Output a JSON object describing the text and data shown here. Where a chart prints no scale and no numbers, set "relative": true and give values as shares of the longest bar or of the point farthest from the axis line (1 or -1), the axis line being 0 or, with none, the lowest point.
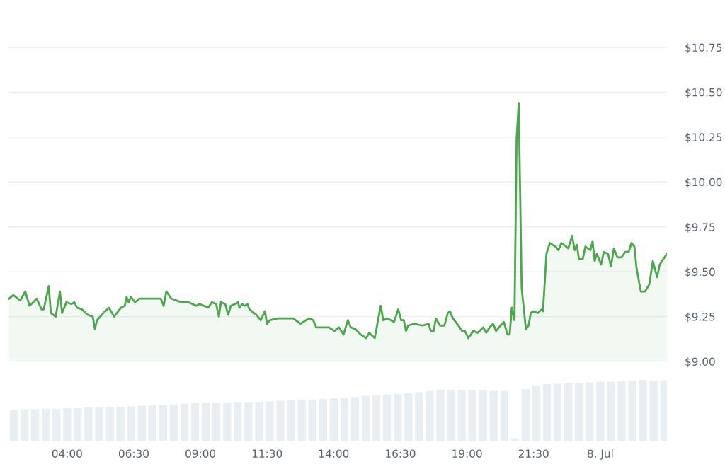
{
  "chart_data": [
    {
      "type": "area",
      "tick_labels": "y",
      "grid": "y",
      "xlim": [
        1.8,
        26.5
      ],
      "ylim": [
        9.0,
        10.75
      ],
      "yticks": [
        {
          "value": 9.0,
          "label": "$9.00"
        },
        {
          "value": 9.25,
          "label": "$9.25"
        },
        {
          "value": 9.5,
          "label": "$9.50"
        },
        {
          "value": 9.75,
          "label": "$9.75"
        },
        {
          "value": 10.0,
          "label": "$10.00"
        },
        {
          "value": 10.25,
          "label": "$10.25"
        },
        {
          "value": 10.5,
          "label": "$10.50"
        },
        {
          "value": 10.75,
          "label": "$10.75"
        }
      ],
      "series": [
        {
          "color": "#4ca64c",
          "x": [
            1.82,
            1.98,
            2.24,
            2.43,
            2.59,
            2.86,
            3.04,
            3.12,
            3.31,
            3.39,
            3.57,
            3.73,
            3.81,
            3.97,
            4.16,
            4.27,
            4.37,
            4.56,
            4.77,
            4.96,
            5.04,
            5.12,
            5.36,
            5.57,
            5.76,
            6.02,
            6.16,
            6.23,
            6.31,
            6.39,
            6.55,
            6.71,
            7.03,
            7.51,
            7.62,
            7.72,
            7.91,
            8.28,
            8.55,
            8.84,
            8.97,
            9.29,
            9.43,
            9.59,
            9.69,
            9.77,
            9.93,
            10.04,
            10.14,
            10.3,
            10.41,
            10.46,
            10.57,
            10.65,
            10.76,
            10.84,
            11.1,
            11.26,
            11.42,
            11.5,
            11.61,
            11.9,
            12.35,
            12.48,
            12.75,
            13.07,
            13.23,
            13.34,
            13.6,
            13.81,
            14.03,
            14.19,
            14.37,
            14.53,
            14.64,
            14.82,
            15.01,
            15.22,
            15.33,
            15.54,
            15.76,
            15.86,
            16.02,
            16.26,
            16.42,
            16.53,
            16.63,
            16.71,
            16.79,
            17.01,
            17.33,
            17.56,
            17.64,
            17.75,
            17.83,
            17.99,
            18.15,
            18.28,
            18.36,
            18.47,
            18.68,
            18.81,
            18.92,
            19.05,
            19.24,
            19.4,
            19.61,
            19.72,
            19.85,
            19.98,
            20.09,
            20.2,
            20.38,
            20.52,
            20.6,
            20.68,
            20.78,
            20.86,
            20.94,
            21.05,
            21.21,
            21.31,
            21.39,
            21.5,
            21.66,
            21.79,
            21.85,
            21.98,
            22.11,
            22.32,
            22.43,
            22.54,
            22.72,
            22.8,
            22.94,
            23.04,
            23.12,
            23.2,
            23.34,
            23.44,
            23.63,
            23.71,
            23.79,
            23.87,
            24.03,
            24.13,
            24.29,
            24.4,
            24.51,
            24.64,
            24.8,
            24.93,
            25.06,
            25.17,
            25.28,
            25.36,
            25.52,
            25.68,
            25.84,
            25.97,
            26.13,
            26.23,
            26.5
          ],
          "values": [
            9.35,
            9.37,
            9.34,
            9.39,
            9.31,
            9.35,
            9.29,
            9.29,
            9.42,
            9.27,
            9.25,
            9.39,
            9.27,
            9.33,
            9.32,
            9.33,
            9.3,
            9.29,
            9.26,
            9.25,
            9.18,
            9.23,
            9.27,
            9.3,
            9.25,
            9.3,
            9.31,
            9.36,
            9.33,
            9.36,
            9.33,
            9.35,
            9.35,
            9.35,
            9.31,
            9.39,
            9.35,
            9.33,
            9.33,
            9.31,
            9.32,
            9.3,
            9.33,
            9.32,
            9.25,
            9.33,
            9.32,
            9.26,
            9.31,
            9.32,
            9.33,
            9.3,
            9.32,
            9.31,
            9.32,
            9.29,
            9.26,
            9.23,
            9.28,
            9.21,
            9.23,
            9.24,
            9.24,
            9.24,
            9.21,
            9.24,
            9.23,
            9.19,
            9.19,
            9.19,
            9.17,
            9.19,
            9.15,
            9.23,
            9.19,
            9.18,
            9.15,
            9.13,
            9.16,
            9.13,
            9.31,
            9.23,
            9.24,
            9.22,
            9.29,
            9.23,
            9.23,
            9.17,
            9.2,
            9.21,
            9.2,
            9.21,
            9.17,
            9.17,
            9.24,
            9.2,
            9.2,
            9.27,
            9.28,
            9.24,
            9.2,
            9.17,
            9.17,
            9.13,
            9.17,
            9.16,
            9.19,
            9.16,
            9.19,
            9.21,
            9.17,
            9.19,
            9.22,
            9.15,
            9.15,
            9.3,
            9.23,
            10.24,
            10.44,
            9.41,
            9.18,
            9.2,
            9.27,
            9.28,
            9.27,
            9.29,
            9.28,
            9.6,
            9.66,
            9.64,
            9.62,
            9.66,
            9.64,
            9.63,
            9.7,
            9.62,
            9.65,
            9.57,
            9.57,
            9.64,
            9.62,
            9.67,
            9.56,
            9.6,
            9.54,
            9.61,
            9.6,
            9.53,
            9.63,
            9.58,
            9.58,
            9.61,
            9.61,
            9.66,
            9.64,
            9.52,
            9.39,
            9.39,
            9.43,
            9.56,
            9.47,
            9.54,
            9.6
          ]
        }
      ]
    },
    {
      "type": "bar",
      "relative": true,
      "tick_labels": "x",
      "xlim": [
        1.8,
        26.5
      ],
      "xticks": [
        {
          "value": 4,
          "label": "04:00"
        },
        {
          "value": 6.5,
          "label": "06:30"
        },
        {
          "value": 9,
          "label": "09:00"
        },
        {
          "value": 11.5,
          "label": "11:30"
        },
        {
          "value": 14,
          "label": "14:00"
        },
        {
          "value": 16.5,
          "label": "16:30"
        },
        {
          "value": 19,
          "label": "19:00"
        },
        {
          "value": 21.5,
          "label": "21:30"
        },
        {
          "value": 24,
          "label": "8. Jul"
        }
      ],
      "series": [
        {
          "color": "#e8eef1",
          "x": [
            2.0,
            2.4,
            2.8,
            3.2,
            3.6,
            4.0,
            4.4,
            4.8,
            5.2,
            5.6,
            6.0,
            6.4,
            6.8,
            7.2,
            7.6,
            8.0,
            8.4,
            8.8,
            9.2,
            9.6,
            10.0,
            10.4,
            10.8,
            11.2,
            11.6,
            12.0,
            12.4,
            12.8,
            13.2,
            13.6,
            14.0,
            14.4,
            14.8,
            15.2,
            15.6,
            16.0,
            16.4,
            16.8,
            17.2,
            17.6,
            18.0,
            18.4,
            18.8,
            19.2,
            19.6,
            20.0,
            20.4,
            20.8,
            21.2,
            21.6,
            22.0,
            22.4,
            22.8,
            23.2,
            23.6,
            24.0,
            24.4,
            24.8,
            25.2,
            25.6,
            26.0,
            26.4
          ],
          "values": [
            0.51,
            0.52,
            0.52,
            0.53,
            0.53,
            0.54,
            0.54,
            0.55,
            0.55,
            0.56,
            0.56,
            0.57,
            0.58,
            0.59,
            0.59,
            0.6,
            0.61,
            0.62,
            0.62,
            0.63,
            0.63,
            0.64,
            0.64,
            0.64,
            0.65,
            0.66,
            0.67,
            0.68,
            0.68,
            0.69,
            0.7,
            0.7,
            0.72,
            0.74,
            0.75,
            0.76,
            0.77,
            0.78,
            0.8,
            0.82,
            0.84,
            0.84,
            0.83,
            0.83,
            0.83,
            0.82,
            0.82,
            0.05,
            0.85,
            0.9,
            0.93,
            0.94,
            0.95,
            0.95,
            0.96,
            0.97,
            0.97,
            0.98,
            0.99,
            1,
            0.99,
            0.99
          ]
        }
      ]
    }
  ]
}
